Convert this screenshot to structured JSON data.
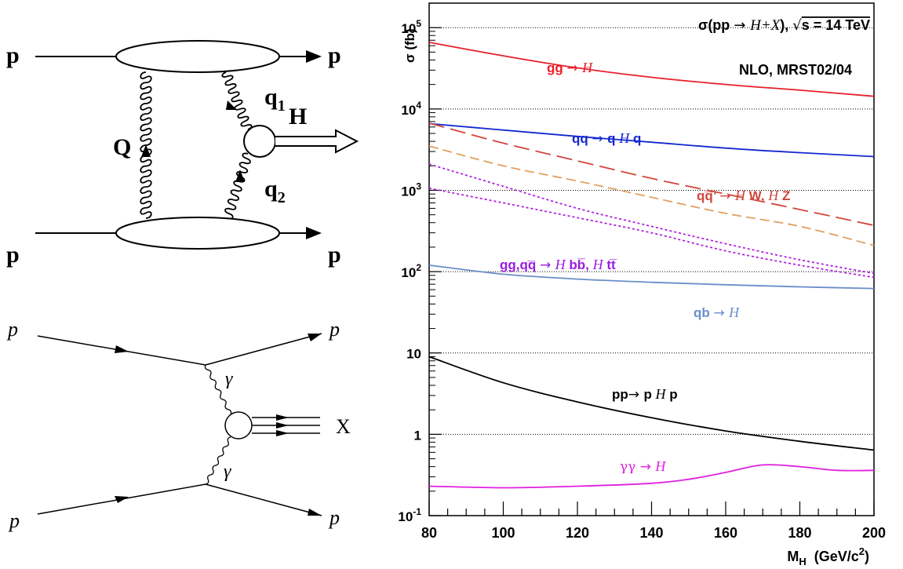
{
  "diagram_top": {
    "labels": {
      "p_in_top": "p",
      "p_out_top": "p",
      "p_in_bottom": "p",
      "p_out_bottom": "p",
      "gluon_q": "Q",
      "gluon_q1": "q",
      "gluon_q1_sub": "1",
      "gluon_q2": "q",
      "gluon_q2_sub": "2",
      "higgs": "H"
    }
  },
  "diagram_bottom": {
    "labels": {
      "p_in_top": "p",
      "p_out_top": "p",
      "p_in_bottom": "p",
      "p_out_bottom": "p",
      "photon_top": "γ",
      "photon_bottom": "γ",
      "x_out": "X"
    }
  },
  "chart_data": {
    "type": "line",
    "title": "σ(pp → H+X), √s = 14 TeV",
    "title_parts": {
      "a": "σ(pp ",
      "b": "→ ",
      "c": "H+X",
      "d": "), ",
      "e": "√",
      "f": "s = 14 TeV"
    },
    "subtitle": "NLO, MRST02/04",
    "ylabel": "σ (fb)",
    "xlabel": {
      "main": "M",
      "sub": "H",
      "rest": "  (GeV/c",
      "sup": "2",
      "close": ")"
    },
    "xlim": [
      80,
      200
    ],
    "ylim": [
      0.1,
      200000
    ],
    "yscale": "log",
    "x_ticks": [
      "80",
      "100",
      "120",
      "140",
      "160",
      "180",
      "200"
    ],
    "y_ticks": [
      {
        "value": 0.1,
        "base": "10",
        "exp": "-1"
      },
      {
        "value": 1,
        "base": "1",
        "exp": ""
      },
      {
        "value": 10,
        "base": "10",
        "exp": ""
      },
      {
        "value": 100,
        "base": "10",
        "exp": "2"
      },
      {
        "value": 1000,
        "base": "10",
        "exp": "3"
      },
      {
        "value": 10000,
        "base": "10",
        "exp": "4"
      },
      {
        "value": 100000,
        "base": "10",
        "exp": "5"
      }
    ],
    "grid": true,
    "series": [
      {
        "x": [
          80,
          100,
          120,
          140,
          160,
          180,
          200
        ],
        "values": [
          66000,
          45000,
          32000,
          24500,
          20000,
          17000,
          14300
        ],
        "color": "#e8202a",
        "style": "solid"
      },
      {
        "x": [
          80,
          100,
          120,
          140,
          160,
          180,
          200
        ],
        "values": [
          6600,
          5500,
          4600,
          3900,
          3300,
          2900,
          2600
        ],
        "color": "#1428d0",
        "style": "solid"
      },
      {
        "x": [
          80,
          100,
          120,
          140,
          160,
          180,
          200
        ],
        "values": [
          6700,
          3800,
          2300,
          1400,
          900,
          580,
          370
        ],
        "color": "#d2463c",
        "style": "longdash"
      },
      {
        "x": [
          80,
          100,
          120,
          140,
          160,
          180,
          200
        ],
        "values": [
          3500,
          2000,
          1300,
          820,
          520,
          360,
          210
        ],
        "color": "#e0a060",
        "style": "dash"
      },
      {
        "x": [
          80,
          100,
          120,
          140,
          160,
          180,
          200
        ],
        "values": [
          2100,
          1120,
          600,
          360,
          220,
          140,
          95
        ],
        "color": "#b020e0",
        "style": "dot"
      },
      {
        "x": [
          80,
          100,
          120,
          140,
          160,
          180,
          200
        ],
        "values": [
          1060,
          700,
          460,
          300,
          180,
          120,
          85
        ],
        "color": "#b020e0",
        "style": "dot"
      },
      {
        "x": [
          80,
          100,
          120,
          140,
          160,
          180,
          200
        ],
        "values": [
          120,
          93,
          81,
          74,
          69,
          65,
          62
        ],
        "color": "#6a8ec8",
        "style": "solid"
      },
      {
        "x": [
          80,
          100,
          120,
          140,
          160,
          180,
          200
        ],
        "values": [
          9,
          4.3,
          2.5,
          1.6,
          1.1,
          0.82,
          0.64
        ],
        "color": "#000000",
        "style": "solid"
      },
      {
        "x": [
          80,
          100,
          120,
          140,
          150,
          160,
          170,
          180,
          190,
          200
        ],
        "values": [
          0.23,
          0.22,
          0.23,
          0.25,
          0.28,
          0.34,
          0.42,
          0.4,
          0.36,
          0.36
        ],
        "color": "#e020e0",
        "style": "solid"
      }
    ],
    "annotations": {
      "ggH": {
        "a": "gg ",
        "b": "→ ",
        "c": "H"
      },
      "qqHq": {
        "a": "qq ",
        "b": "→ ",
        "c": "q ",
        "d": "H",
        "e": " q"
      },
      "qqHW": {
        "a": "qq̅’ ",
        "b": "→ ",
        "c": "H",
        "d": " W, ",
        "e": "H",
        "f": " Z"
      },
      "ggbb": {
        "a": "gg,qq̅ ",
        "b": "→ ",
        "c": "H",
        "d": " bb̅, ",
        "e": "H",
        "f": " tt̅"
      },
      "qbH": {
        "a": "qb ",
        "b": "→ ",
        "c": "H"
      },
      "ppHp": {
        "a": "pp",
        "b": "→ ",
        "c": "p ",
        "d": "H",
        "e": " p"
      },
      "yyH": {
        "a": "γγ ",
        "b": "→ ",
        "c": "H"
      }
    }
  }
}
